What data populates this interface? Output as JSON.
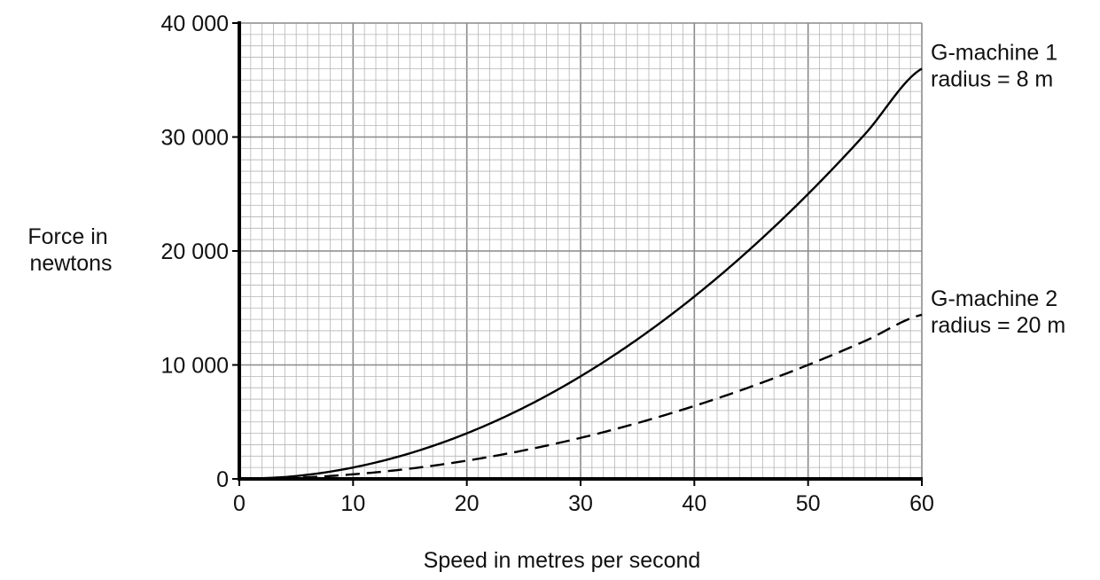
{
  "chart_data": {
    "type": "line",
    "title": "",
    "xlabel": "Speed in metres per second",
    "ylabel": [
      "Force in",
      "newtons"
    ],
    "xlim": [
      0,
      60
    ],
    "ylim": [
      0,
      40000
    ],
    "grid": true,
    "x_ticks": [
      "0",
      "10",
      "20",
      "30",
      "40",
      "50",
      "60"
    ],
    "y_ticks": [
      "0",
      "10 000",
      "20 000",
      "30 000",
      "40 000"
    ],
    "series": [
      {
        "name_lines": [
          "G-machine 1",
          "radius = 8 m"
        ],
        "style": "solid",
        "x": [
          0,
          5,
          10,
          15,
          20,
          25,
          30,
          35,
          40,
          45,
          50,
          55,
          60
        ],
        "values": [
          0,
          250,
          1000,
          2250,
          4000,
          6250,
          9000,
          12250,
          16000,
          20250,
          25000,
          30250,
          36000
        ]
      },
      {
        "name_lines": [
          "G-machine 2",
          "radius = 20 m"
        ],
        "style": "dashed",
        "x": [
          0,
          5,
          10,
          15,
          20,
          25,
          30,
          35,
          40,
          45,
          50,
          55,
          60
        ],
        "values": [
          0,
          100,
          400,
          900,
          1600,
          2500,
          3600,
          4900,
          6400,
          8100,
          10000,
          12100,
          14400
        ]
      }
    ]
  }
}
